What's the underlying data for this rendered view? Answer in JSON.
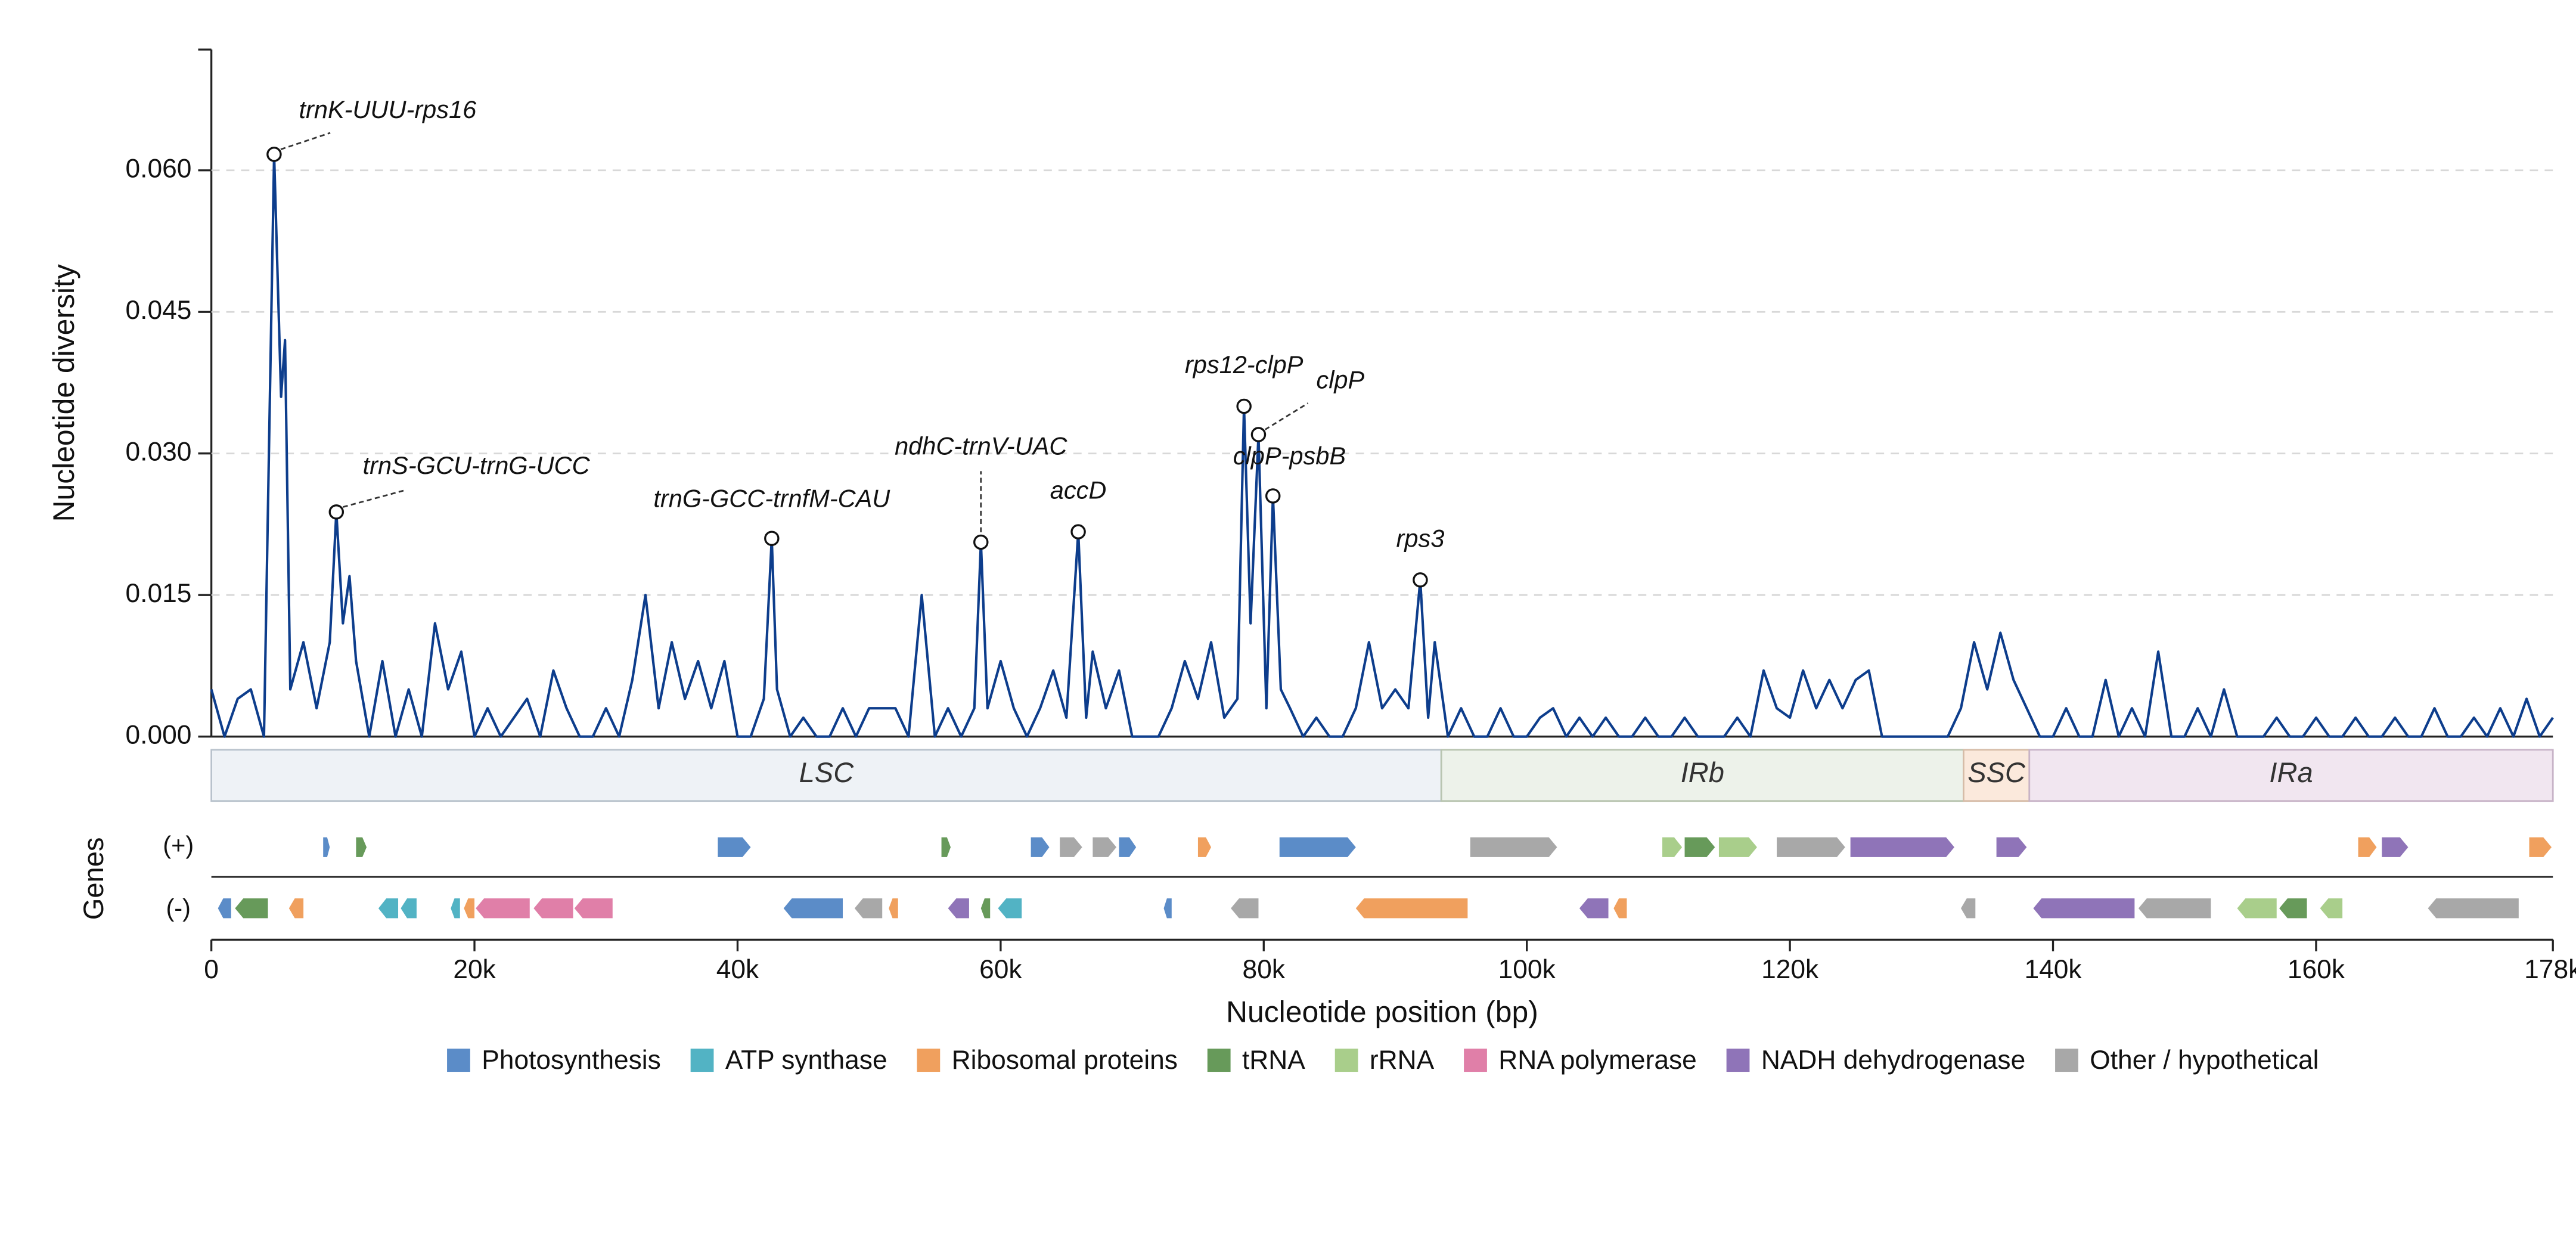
{
  "chart_data": {
    "type": "line",
    "ylabel": "Nucleotide diversity",
    "xlabel": "Nucleotide position (bp)",
    "color": "#0d3d8c",
    "xlim": [
      0,
      178000
    ],
    "ylim": [
      0,
      0.0728
    ],
    "grid": true,
    "xticks": [
      0,
      {
        "value": 20000,
        "label": "20k"
      },
      {
        "value": 40000,
        "label": "40k"
      },
      {
        "value": 60000,
        "label": "60k"
      },
      {
        "value": 80000,
        "label": "80k"
      },
      {
        "value": 100000,
        "label": "100k"
      },
      {
        "value": 120000,
        "label": "120k"
      },
      {
        "value": 140000,
        "label": "140k"
      },
      {
        "value": 160000,
        "label": "160k"
      },
      {
        "value": 178000,
        "label": "178k"
      }
    ],
    "yticks": [
      {
        "value": 0,
        "label": "0.000"
      },
      {
        "value": 0.015,
        "label": "0.015"
      },
      {
        "value": 0.03,
        "label": "0.030"
      },
      {
        "value": 0.045,
        "label": "0.045"
      },
      {
        "value": 0.06,
        "label": "0.060"
      }
    ],
    "x": [
      0,
      1000,
      2000,
      3000,
      4000,
      4770,
      5300,
      5600,
      6000,
      7000,
      8000,
      9000,
      9500,
      10000,
      10500,
      11000,
      12000,
      13000,
      14000,
      15000,
      16000,
      17000,
      18000,
      19000,
      20000,
      21000,
      22000,
      23000,
      24000,
      25000,
      26000,
      27000,
      28000,
      29000,
      30000,
      31000,
      32000,
      33000,
      34000,
      35000,
      36000,
      37000,
      38000,
      39000,
      40000,
      41000,
      42000,
      42600,
      43000,
      44000,
      45000,
      46000,
      47000,
      48000,
      49000,
      50000,
      51000,
      52000,
      53000,
      54000,
      55000,
      56000,
      57000,
      58000,
      58500,
      59000,
      60000,
      61000,
      62000,
      63000,
      64000,
      65000,
      65900,
      66500,
      67000,
      68000,
      69000,
      70000,
      71000,
      72000,
      73000,
      74000,
      75000,
      76000,
      77000,
      78000,
      78500,
      79000,
      79600,
      80200,
      80700,
      81300,
      82000,
      83000,
      84000,
      85000,
      86000,
      87000,
      88000,
      89000,
      90000,
      91000,
      91900,
      92500,
      93000,
      94000,
      95000,
      96000,
      97000,
      98000,
      99000,
      100000,
      101000,
      102000,
      103000,
      104000,
      105000,
      106000,
      107000,
      108000,
      109000,
      110000,
      111000,
      112000,
      113000,
      114000,
      115000,
      116000,
      117000,
      118000,
      119000,
      120000,
      121000,
      122000,
      123000,
      124000,
      125000,
      126000,
      127000,
      128000,
      129000,
      130000,
      131000,
      132000,
      133000,
      134000,
      135000,
      136000,
      137000,
      138000,
      139000,
      140000,
      141000,
      142000,
      143000,
      144000,
      145000,
      146000,
      147000,
      148000,
      149000,
      150000,
      151000,
      152000,
      153000,
      154000,
      155000,
      156000,
      157000,
      158000,
      159000,
      160000,
      161000,
      162000,
      163000,
      164000,
      165000,
      166000,
      167000,
      168000,
      169000,
      170000,
      171000,
      172000,
      173000,
      174000,
      175000,
      176000,
      177000,
      178000
    ],
    "values": [
      0.005,
      0,
      0.004,
      0.005,
      0,
      0.0617,
      0.036,
      0.042,
      0.005,
      0.01,
      0.003,
      0.01,
      0.0238,
      0.012,
      0.017,
      0.008,
      0,
      0.008,
      0,
      0.005,
      0,
      0.012,
      0.005,
      0.009,
      0,
      0.003,
      0,
      0.002,
      0.004,
      0,
      0.007,
      0.003,
      0,
      0,
      0.003,
      0,
      0.006,
      0.015,
      0.003,
      0.01,
      0.004,
      0.008,
      0.003,
      0.008,
      0,
      0,
      0.004,
      0.021,
      0.005,
      0,
      0.002,
      0,
      0,
      0.003,
      0,
      0.003,
      0.003,
      0.003,
      0,
      0.015,
      0,
      0.003,
      0,
      0.003,
      0.0206,
      0.003,
      0.008,
      0.003,
      0,
      0.003,
      0.007,
      0.002,
      0.0217,
      0.002,
      0.009,
      0.003,
      0.007,
      0,
      0,
      0,
      0.003,
      0.008,
      0.004,
      0.01,
      0.002,
      0.004,
      0.035,
      0.012,
      0.032,
      0.003,
      0.0255,
      0.005,
      0.003,
      0,
      0.002,
      0,
      0,
      0.003,
      0.01,
      0.003,
      0.005,
      0.003,
      0.0166,
      0.002,
      0.01,
      0,
      0.003,
      0,
      0,
      0.003,
      0,
      0,
      0.002,
      0.003,
      0,
      0.002,
      0,
      0.002,
      0,
      0,
      0.002,
      0,
      0,
      0.002,
      0,
      0,
      0,
      0.002,
      0,
      0.007,
      0.003,
      0.002,
      0.007,
      0.003,
      0.006,
      0.003,
      0.006,
      0.007,
      0,
      0,
      0,
      0,
      0,
      0,
      0.003,
      0.01,
      0.005,
      0.011,
      0.006,
      0.003,
      0,
      0,
      0.003,
      0,
      0,
      0.006,
      0,
      0.003,
      0,
      0.009,
      0,
      0,
      0.003,
      0,
      0.005,
      0,
      0,
      0,
      0.002,
      0,
      0,
      0.002,
      0,
      0,
      0.002,
      0,
      0,
      0.002,
      0,
      0,
      0.003,
      0,
      0,
      0.002,
      0,
      0.003,
      0,
      0.004,
      0,
      0.002
    ],
    "annotations": [
      {
        "text": "trnK-UUU-rps16",
        "x": 4770,
        "y": 0.0617
      },
      {
        "text": "trnS-GCU-trnG-UCC",
        "x": 9500,
        "y": 0.0238
      },
      {
        "text": "trnG-GCC-trnfM-CAU",
        "x": 42600,
        "y": 0.021
      },
      {
        "text": "ndhC-trnV-UAC",
        "x": 58500,
        "y": 0.0206
      },
      {
        "text": "accD",
        "x": 65900,
        "y": 0.0217
      },
      {
        "text": "rps12-clpP",
        "x": 78500,
        "y": 0.035
      },
      {
        "text": "clpP",
        "x": 79600,
        "y": 0.032
      },
      {
        "text": "clpP-psbB",
        "x": 80700,
        "y": 0.0255
      },
      {
        "text": "rps3",
        "x": 91900,
        "y": 0.0166
      }
    ],
    "regions": [
      {
        "label": "LSC",
        "start": 0,
        "end": 93500,
        "color": "#eef2f6",
        "edge": "#b8c2cc"
      },
      {
        "label": "IRb",
        "start": 93500,
        "end": 133200,
        "color": "#edf2ea",
        "edge": "#b8c4b0"
      },
      {
        "label": "SSC",
        "start": 133200,
        "end": 138200,
        "color": "#fbe9dc",
        "edge": "#d6bca8"
      },
      {
        "label": "IRa",
        "start": 138200,
        "end": 178000,
        "color": "#f1e6f0",
        "edge": "#c8b4c8"
      }
    ],
    "genes": {
      "label": "Genes",
      "plus_label": "(+)",
      "minus_label": "(-)",
      "blocks": [
        {
          "start": 8500,
          "end": 9000,
          "strand": "+",
          "category": "Photosynthesis"
        },
        {
          "start": 11000,
          "end": 11800,
          "strand": "+",
          "category": "tRNA"
        },
        {
          "start": 38500,
          "end": 41000,
          "strand": "+",
          "category": "Photosynthesis"
        },
        {
          "start": 55500,
          "end": 56200,
          "strand": "+",
          "category": "tRNA"
        },
        {
          "start": 62300,
          "end": 63700,
          "strand": "+",
          "category": "Photosynthesis"
        },
        {
          "start": 64500,
          "end": 66200,
          "strand": "+",
          "category": "Other / hypothetical"
        },
        {
          "start": 67000,
          "end": 68800,
          "strand": "+",
          "category": "Other / hypothetical"
        },
        {
          "start": 69000,
          "end": 70300,
          "strand": "+",
          "category": "Photosynthesis"
        },
        {
          "start": 75000,
          "end": 76000,
          "strand": "+",
          "category": "Ribosomal proteins"
        },
        {
          "start": 81200,
          "end": 87000,
          "strand": "+",
          "category": "Photosynthesis"
        },
        {
          "start": 95700,
          "end": 102300,
          "strand": "+",
          "category": "Other / hypothetical"
        },
        {
          "start": 110300,
          "end": 111800,
          "strand": "+",
          "category": "rRNA"
        },
        {
          "start": 112000,
          "end": 114300,
          "strand": "+",
          "category": "tRNA"
        },
        {
          "start": 114600,
          "end": 117500,
          "strand": "+",
          "category": "rRNA"
        },
        {
          "start": 119000,
          "end": 124200,
          "strand": "+",
          "category": "Other / hypothetical"
        },
        {
          "start": 124600,
          "end": 132500,
          "strand": "+",
          "category": "NADH dehydrogenase"
        },
        {
          "start": 135700,
          "end": 138000,
          "strand": "+",
          "category": "NADH dehydrogenase"
        },
        {
          "start": 163200,
          "end": 164600,
          "strand": "+",
          "category": "Ribosomal proteins"
        },
        {
          "start": 165000,
          "end": 167000,
          "strand": "+",
          "category": "NADH dehydrogenase"
        },
        {
          "start": 176200,
          "end": 177900,
          "strand": "+",
          "category": "Ribosomal proteins"
        },
        {
          "start": 500,
          "end": 1500,
          "strand": "-",
          "category": "Photosynthesis"
        },
        {
          "start": 1800,
          "end": 4300,
          "strand": "-",
          "category": "tRNA"
        },
        {
          "start": 5900,
          "end": 7000,
          "strand": "-",
          "category": "Ribosomal proteins"
        },
        {
          "start": 12700,
          "end": 14200,
          "strand": "-",
          "category": "ATP synthase"
        },
        {
          "start": 14400,
          "end": 15600,
          "strand": "-",
          "category": "ATP synthase"
        },
        {
          "start": 18200,
          "end": 18900,
          "strand": "-",
          "category": "ATP synthase"
        },
        {
          "start": 19200,
          "end": 20000,
          "strand": "-",
          "category": "Ribosomal proteins"
        },
        {
          "start": 20100,
          "end": 24200,
          "strand": "-",
          "category": "RNA polymerase"
        },
        {
          "start": 24500,
          "end": 27500,
          "strand": "-",
          "category": "RNA polymerase"
        },
        {
          "start": 27600,
          "end": 30500,
          "strand": "-",
          "category": "RNA polymerase"
        },
        {
          "start": 43500,
          "end": 48000,
          "strand": "-",
          "category": "Photosynthesis"
        },
        {
          "start": 48900,
          "end": 51000,
          "strand": "-",
          "category": "Other / hypothetical"
        },
        {
          "start": 51500,
          "end": 52200,
          "strand": "-",
          "category": "Ribosomal proteins"
        },
        {
          "start": 56000,
          "end": 57600,
          "strand": "-",
          "category": "NADH dehydrogenase"
        },
        {
          "start": 58500,
          "end": 59200,
          "strand": "-",
          "category": "tRNA"
        },
        {
          "start": 59800,
          "end": 61600,
          "strand": "-",
          "category": "ATP synthase"
        },
        {
          "start": 72400,
          "end": 73000,
          "strand": "-",
          "category": "Photosynthesis"
        },
        {
          "start": 77500,
          "end": 79600,
          "strand": "-",
          "category": "Other / hypothetical"
        },
        {
          "start": 87000,
          "end": 95500,
          "strand": "-",
          "category": "Ribosomal proteins"
        },
        {
          "start": 104000,
          "end": 106200,
          "strand": "-",
          "category": "NADH dehydrogenase"
        },
        {
          "start": 106600,
          "end": 107600,
          "strand": "-",
          "category": "Ribosomal proteins"
        },
        {
          "start": 133000,
          "end": 134100,
          "strand": "-",
          "category": "Other / hypothetical"
        },
        {
          "start": 138500,
          "end": 146200,
          "strand": "-",
          "category": "NADH dehydrogenase"
        },
        {
          "start": 146500,
          "end": 152000,
          "strand": "-",
          "category": "Other / hypothetical"
        },
        {
          "start": 154000,
          "end": 157000,
          "strand": "-",
          "category": "rRNA"
        },
        {
          "start": 157200,
          "end": 159300,
          "strand": "-",
          "category": "tRNA"
        },
        {
          "start": 160300,
          "end": 162000,
          "strand": "-",
          "category": "rRNA"
        },
        {
          "start": 168500,
          "end": 175400,
          "strand": "-",
          "category": "Other / hypothetical"
        }
      ]
    },
    "legend": [
      {
        "name": "Photosynthesis",
        "color": "#5b8cc8"
      },
      {
        "name": "ATP synthase",
        "color": "#52b3c4"
      },
      {
        "name": "Ribosomal proteins",
        "color": "#f0a05e"
      },
      {
        "name": "tRNA",
        "color": "#679a5a"
      },
      {
        "name": "rRNA",
        "color": "#a9ce8b"
      },
      {
        "name": "RNA polymerase",
        "color": "#e07fa8"
      },
      {
        "name": "NADH dehydrogenase",
        "color": "#8f74b8"
      },
      {
        "name": "Other / hypothetical",
        "color": "#a8a8a8"
      }
    ]
  }
}
